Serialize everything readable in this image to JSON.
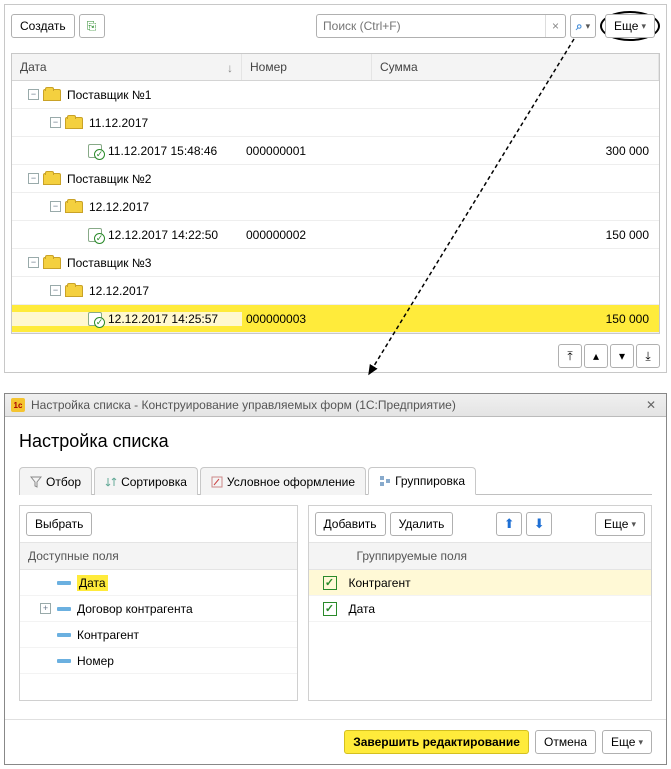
{
  "toolbar": {
    "create_label": "Создать",
    "search_placeholder": "Поиск (Ctrl+F)",
    "more_label": "Еще"
  },
  "grid": {
    "columns": {
      "date": "Дата",
      "number": "Номер",
      "sum": "Сумма"
    },
    "groups": [
      {
        "supplier": "Поставщик №1",
        "date_group": "11.12.2017",
        "docs": [
          {
            "datetime": "11.12.2017 15:48:46",
            "number": "000000001",
            "sum": "300 000",
            "selected": false
          }
        ]
      },
      {
        "supplier": "Поставщик №2",
        "date_group": "12.12.2017",
        "docs": [
          {
            "datetime": "12.12.2017 14:22:50",
            "number": "000000002",
            "sum": "150 000",
            "selected": false
          }
        ]
      },
      {
        "supplier": "Поставщик №3",
        "date_group": "12.12.2017",
        "docs": [
          {
            "datetime": "12.12.2017 14:25:57",
            "number": "000000003",
            "sum": "150 000",
            "selected": true
          }
        ]
      }
    ]
  },
  "dialog": {
    "title": "Настройка списка - Конструирование управляемых форм  (1С:Предприятие)",
    "heading": "Настройка списка",
    "tabs": {
      "filter": "Отбор",
      "sort": "Сортировка",
      "format": "Условное оформление",
      "group": "Группировка"
    },
    "left": {
      "select_btn": "Выбрать",
      "header": "Доступные поля",
      "fields": [
        {
          "label": "Дата",
          "expandable": null,
          "highlight": true
        },
        {
          "label": "Договор контрагента",
          "expandable": "+",
          "highlight": false
        },
        {
          "label": "Контрагент",
          "expandable": null,
          "highlight": false
        },
        {
          "label": "Номер",
          "expandable": null,
          "highlight": false
        }
      ]
    },
    "right": {
      "add_btn": "Добавить",
      "del_btn": "Удалить",
      "more_btn": "Еще",
      "header": "Группируемые поля",
      "items": [
        {
          "label": "Контрагент",
          "checked": true,
          "highlight": true
        },
        {
          "label": "Дата",
          "checked": true,
          "highlight": false
        }
      ]
    },
    "footer": {
      "apply": "Завершить редактирование",
      "cancel": "Отмена",
      "more": "Еще"
    }
  }
}
